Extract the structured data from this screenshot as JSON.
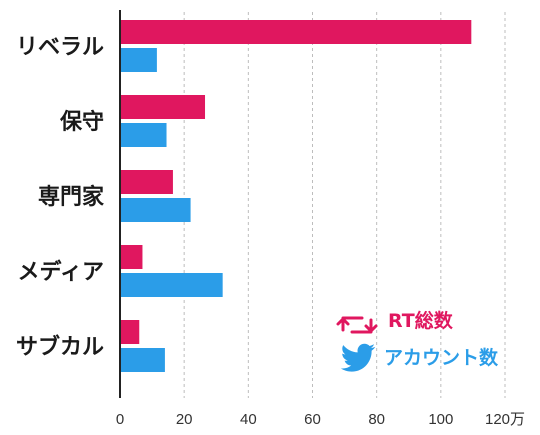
{
  "colors": {
    "rt": "#e0175f",
    "account": "#2b9de8",
    "axis": "#222222",
    "grid": "#bdbdbd",
    "text": "#1a1a1a",
    "tick": "#333333"
  },
  "legend": {
    "rt_icon": "retweet-icon",
    "account_icon": "twitter-bird-icon"
  },
  "chart_data": {
    "type": "bar",
    "orientation": "horizontal",
    "categories": [
      "リベラル",
      "保守",
      "専門家",
      "メディア",
      "サブカル"
    ],
    "series": [
      {
        "name": "RT総数",
        "values": [
          109.5,
          26.5,
          16.5,
          7.0,
          6.0
        ]
      },
      {
        "name": "アカウント数",
        "values": [
          11.5,
          14.5,
          22.0,
          32.0,
          14.0
        ]
      }
    ],
    "xlim": [
      0,
      120
    ],
    "ticks": [
      0,
      20,
      40,
      60,
      80,
      100,
      120
    ],
    "tick_labels": [
      "0",
      "20",
      "40",
      "60",
      "80",
      "100",
      "120万"
    ],
    "grid": true,
    "legend_position": "bottom-right"
  }
}
